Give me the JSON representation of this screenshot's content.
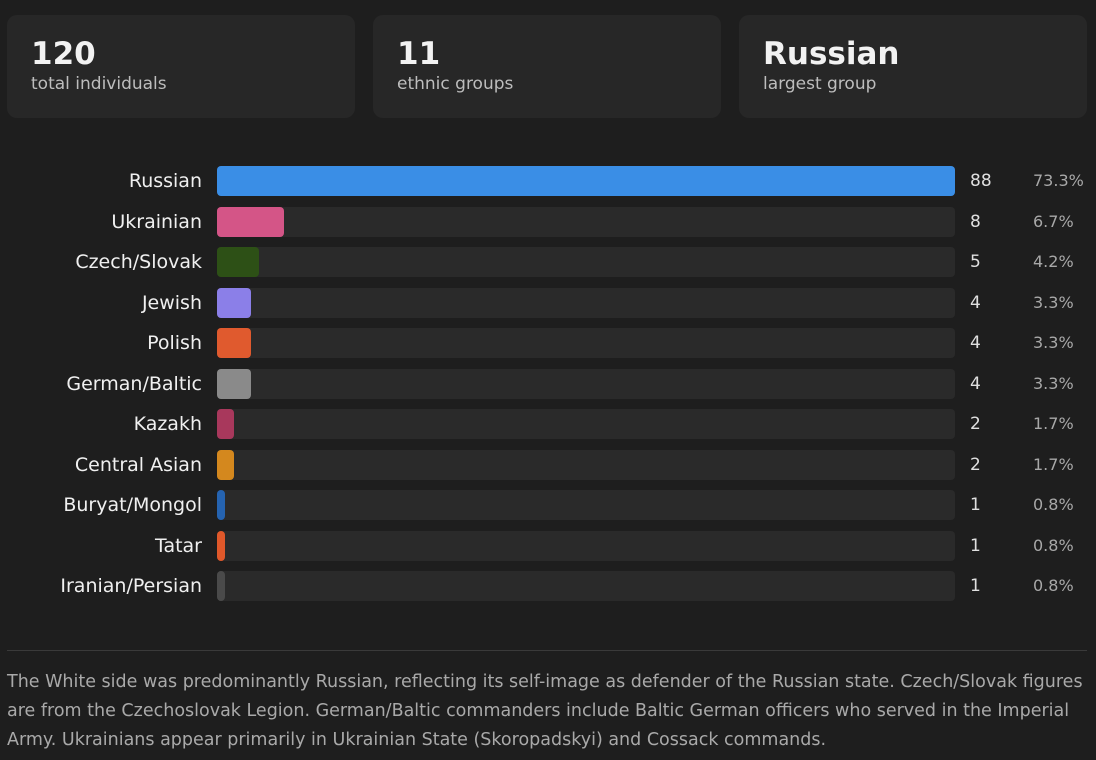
{
  "stats": [
    {
      "value": "120",
      "label": "total individuals"
    },
    {
      "value": "11",
      "label": "ethnic groups"
    },
    {
      "value": "Russian",
      "label": "largest group"
    }
  ],
  "chart_data": {
    "type": "bar",
    "orientation": "horizontal",
    "categories": [
      "Russian",
      "Ukrainian",
      "Czech/Slovak",
      "Jewish",
      "Polish",
      "German/Baltic",
      "Kazakh",
      "Central Asian",
      "Buryat/Mongol",
      "Tatar",
      "Iranian/Persian"
    ],
    "values": [
      88,
      8,
      5,
      4,
      4,
      4,
      2,
      2,
      1,
      1,
      1
    ],
    "percent_labels": [
      "73.3%",
      "6.7%",
      "4.2%",
      "3.3%",
      "3.3%",
      "3.3%",
      "1.7%",
      "1.7%",
      "0.8%",
      "0.8%",
      "0.8%"
    ],
    "colors": [
      "#3a8ee6",
      "#d45587",
      "#2d5016",
      "#8b7fe8",
      "#e05a2e",
      "#8a8a8a",
      "#a8385c",
      "#d4881e",
      "#2563b0",
      "#e0582a",
      "#4a4a4a"
    ],
    "xlim": [
      0,
      88
    ],
    "grid": false,
    "legend": "none"
  },
  "note": "The White side was predominantly Russian, reflecting its self-image as defender of the Russian state. Czech/Slovak figures are from the Czechoslovak Legion. German/Baltic commanders include Baltic German officers who served in the Imperial Army. Ukrainians appear primarily in Ukrainian State (Skoropadskyi) and Cossack commands."
}
